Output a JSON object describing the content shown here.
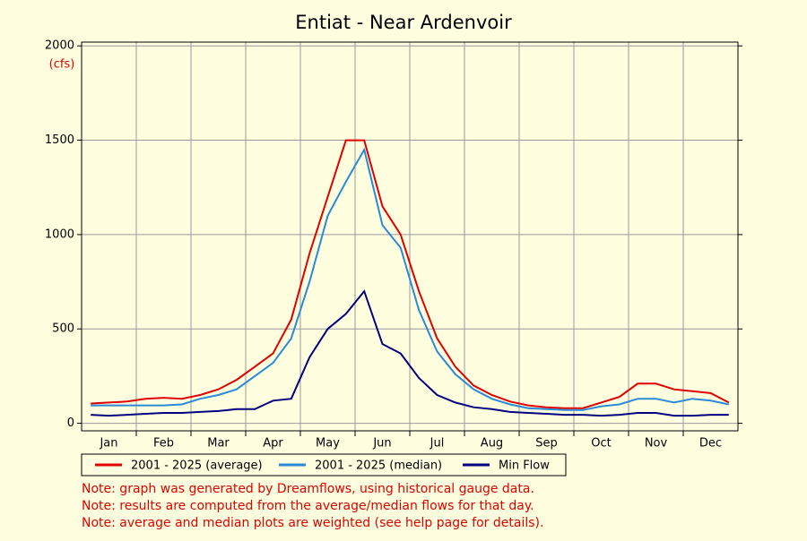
{
  "chart_data": {
    "type": "line",
    "title": "Entiat - Near Ardenvoir",
    "y_label": "(cfs)",
    "categories": [
      null,
      "Jan",
      null,
      null,
      "Feb",
      null,
      null,
      "Mar",
      null,
      null,
      "Apr",
      null,
      null,
      "May",
      null,
      null,
      "Jun",
      null,
      null,
      "Jul",
      null,
      null,
      "Aug",
      null,
      null,
      "Sep",
      null,
      null,
      "Oct",
      null,
      null,
      "Nov",
      null,
      null,
      "Dec",
      null
    ],
    "series": [
      {
        "name": "2001 - 2025 (average)",
        "color": "#e00000",
        "values": [
          105,
          110,
          115,
          130,
          135,
          130,
          150,
          180,
          230,
          300,
          370,
          550,
          900,
          1200,
          1500,
          1500,
          1150,
          1000,
          700,
          450,
          300,
          200,
          150,
          115,
          95,
          85,
          80,
          80,
          110,
          140,
          210,
          210,
          180,
          170,
          160,
          110
        ]
      },
      {
        "name": "2001 - 2025 (median)",
        "color": "#2a8ad8",
        "values": [
          95,
          95,
          95,
          95,
          95,
          100,
          130,
          150,
          180,
          250,
          320,
          450,
          750,
          1100,
          1280,
          1450,
          1050,
          930,
          600,
          380,
          260,
          180,
          130,
          100,
          80,
          75,
          70,
          70,
          90,
          100,
          130,
          130,
          110,
          130,
          120,
          100
        ]
      },
      {
        "name": "Min Flow",
        "color": "#000080",
        "values": [
          45,
          40,
          45,
          50,
          55,
          55,
          60,
          65,
          75,
          75,
          120,
          130,
          350,
          500,
          580,
          700,
          420,
          370,
          240,
          150,
          110,
          85,
          75,
          60,
          55,
          50,
          45,
          45,
          40,
          45,
          55,
          55,
          40,
          40,
          45,
          45
        ]
      }
    ],
    "ylim": [
      -40,
      2020
    ],
    "yticks": [
      0,
      500,
      1000,
      1500,
      2000
    ],
    "grid": true,
    "notes": [
      "Note: graph was generated by Dreamflows, using historical gauge data.",
      "Note: results are computed from the average/median flows for that day.",
      "Note: average and median plots are weighted (see help page for details)."
    ]
  }
}
